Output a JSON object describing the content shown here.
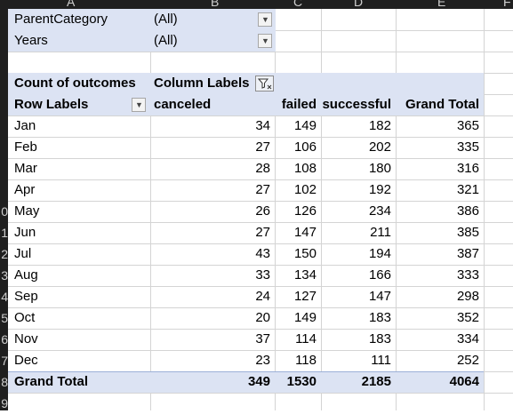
{
  "column_headers": [
    "A",
    "B",
    "C",
    "D",
    "E",
    "F"
  ],
  "row_numbers": [
    "0",
    "1",
    "2",
    "3",
    "4",
    "5",
    "6",
    "7",
    "8",
    "9"
  ],
  "filters": [
    {
      "label": "ParentCategory",
      "value": "(All)"
    },
    {
      "label": "Years",
      "value": "(All)"
    }
  ],
  "pivot": {
    "values_label": "Count of outcomes",
    "column_labels": "Column Labels",
    "row_labels": "Row Labels",
    "columns": [
      "canceled",
      "failed",
      "successful",
      "Grand Total"
    ],
    "rows": [
      {
        "label": "Jan",
        "values": [
          "34",
          "149",
          "182",
          "365"
        ]
      },
      {
        "label": "Feb",
        "values": [
          "27",
          "106",
          "202",
          "335"
        ]
      },
      {
        "label": "Mar",
        "values": [
          "28",
          "108",
          "180",
          "316"
        ]
      },
      {
        "label": "Apr",
        "values": [
          "27",
          "102",
          "192",
          "321"
        ]
      },
      {
        "label": "May",
        "values": [
          "26",
          "126",
          "234",
          "386"
        ]
      },
      {
        "label": "Jun",
        "values": [
          "27",
          "147",
          "211",
          "385"
        ]
      },
      {
        "label": "Jul",
        "values": [
          "43",
          "150",
          "194",
          "387"
        ]
      },
      {
        "label": "Aug",
        "values": [
          "33",
          "134",
          "166",
          "333"
        ]
      },
      {
        "label": "Sep",
        "values": [
          "24",
          "127",
          "147",
          "298"
        ]
      },
      {
        "label": "Oct",
        "values": [
          "20",
          "149",
          "183",
          "352"
        ]
      },
      {
        "label": "Nov",
        "values": [
          "37",
          "114",
          "183",
          "334"
        ]
      },
      {
        "label": "Dec",
        "values": [
          "23",
          "118",
          "111",
          "252"
        ]
      }
    ],
    "grand_total": {
      "label": "Grand Total",
      "values": [
        "349",
        "1530",
        "2185",
        "4064"
      ]
    }
  },
  "colors": {
    "band": "#dce3f3",
    "grid": "#d4d4d4",
    "header_bg": "#1f1f1f"
  }
}
